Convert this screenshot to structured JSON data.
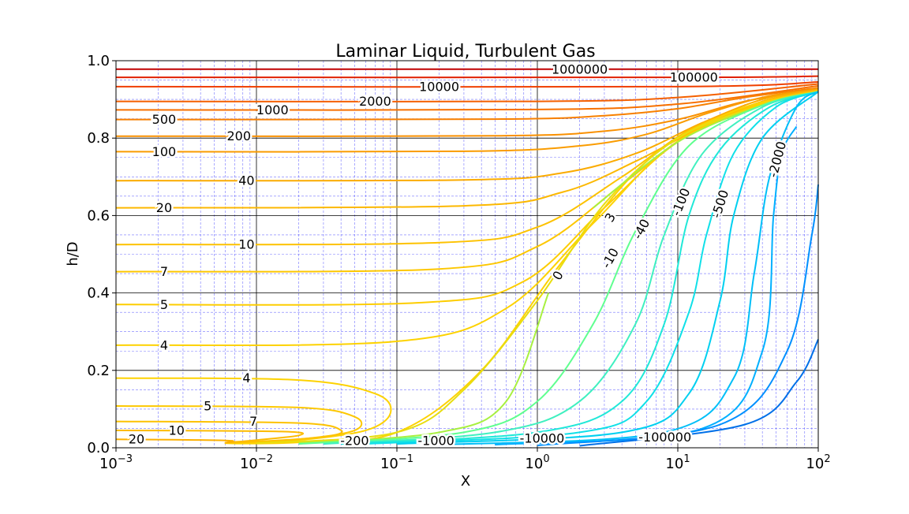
{
  "chart_data": {
    "type": "line",
    "title": "Laminar Liquid, Turbulent Gas",
    "xlabel": "X",
    "ylabel": "h/D",
    "xscale": "log",
    "xlim": [
      0.001,
      100
    ],
    "ylim": [
      0.0,
      1.0
    ],
    "grid": "major and minor",
    "legend": "none",
    "x_ticks": [
      {
        "v": 0.001,
        "base": "10",
        "exp": "−3"
      },
      {
        "v": 0.01,
        "base": "10",
        "exp": "−2"
      },
      {
        "v": 0.1,
        "base": "10",
        "exp": "−1"
      },
      {
        "v": 1,
        "base": "10",
        "exp": "0"
      },
      {
        "v": 10,
        "base": "10",
        "exp": "1"
      },
      {
        "v": 100,
        "base": "10",
        "exp": "2"
      }
    ],
    "y_ticks": [
      {
        "v": 0.0,
        "label": "0.0"
      },
      {
        "v": 0.2,
        "label": "0.2"
      },
      {
        "v": 0.4,
        "label": "0.4"
      },
      {
        "v": 0.6,
        "label": "0.6"
      },
      {
        "v": 0.8,
        "label": "0.8"
      },
      {
        "v": 1.0,
        "label": "1.0"
      }
    ],
    "series": [
      {
        "label": "1000000",
        "color": "#c00000",
        "points": [
          [
            0.001,
            0.978
          ],
          [
            100,
            0.978
          ]
        ]
      },
      {
        "label": "100000",
        "color": "#e02000",
        "points": [
          [
            0.001,
            0.957
          ],
          [
            10,
            0.957
          ],
          [
            100,
            0.96
          ]
        ]
      },
      {
        "label": "10000",
        "color": "#f04000",
        "points": [
          [
            0.001,
            0.933
          ],
          [
            10,
            0.933
          ],
          [
            100,
            0.945
          ]
        ]
      },
      {
        "label": "2000",
        "color": "#f56000",
        "points": [
          [
            0.001,
            0.895
          ],
          [
            1,
            0.895
          ],
          [
            10,
            0.905
          ],
          [
            100,
            0.94
          ]
        ]
      },
      {
        "label": "1000",
        "color": "#f77000",
        "points": [
          [
            0.001,
            0.873
          ],
          [
            1,
            0.874
          ],
          [
            10,
            0.888
          ],
          [
            100,
            0.935
          ]
        ]
      },
      {
        "label": "500",
        "color": "#f88000",
        "points": [
          [
            0.001,
            0.848
          ],
          [
            0.5,
            0.849
          ],
          [
            3,
            0.858
          ],
          [
            10,
            0.876
          ],
          [
            30,
            0.905
          ],
          [
            100,
            0.93
          ]
        ]
      },
      {
        "label": "200",
        "color": "#f99000",
        "points": [
          [
            0.001,
            0.805
          ],
          [
            0.5,
            0.806
          ],
          [
            3,
            0.818
          ],
          [
            10,
            0.848
          ],
          [
            30,
            0.895
          ],
          [
            100,
            0.928
          ]
        ]
      },
      {
        "label": "100",
        "color": "#fa9c00",
        "points": [
          [
            0.001,
            0.765
          ],
          [
            0.3,
            0.766
          ],
          [
            2,
            0.78
          ],
          [
            6,
            0.81
          ],
          [
            15,
            0.86
          ],
          [
            40,
            0.905
          ],
          [
            100,
            0.927
          ]
        ]
      },
      {
        "label": "40",
        "color": "#fbab00",
        "points": [
          [
            0.001,
            0.69
          ],
          [
            0.3,
            0.692
          ],
          [
            1.5,
            0.71
          ],
          [
            5,
            0.76
          ],
          [
            15,
            0.84
          ],
          [
            40,
            0.9
          ],
          [
            100,
            0.925
          ]
        ]
      },
      {
        "label": "20",
        "color": "#fcb800",
        "points": [
          [
            0.001,
            0.62
          ],
          [
            0.3,
            0.625
          ],
          [
            1.5,
            0.66
          ],
          [
            5,
            0.74
          ],
          [
            15,
            0.83
          ],
          [
            40,
            0.895
          ],
          [
            100,
            0.924
          ]
        ]
      },
      {
        "label": "10",
        "color": "#fdc200",
        "points": [
          [
            0.001,
            0.525
          ],
          [
            0.2,
            0.53
          ],
          [
            1,
            0.57
          ],
          [
            4,
            0.7
          ],
          [
            12,
            0.82
          ],
          [
            40,
            0.89
          ],
          [
            100,
            0.923
          ]
        ]
      },
      {
        "label": "7",
        "color": "#fdc700",
        "points": [
          [
            0.001,
            0.455
          ],
          [
            0.2,
            0.462
          ],
          [
            1,
            0.52
          ],
          [
            4,
            0.68
          ],
          [
            12,
            0.81
          ],
          [
            40,
            0.89
          ],
          [
            100,
            0.922
          ]
        ]
      },
      {
        "label": "5",
        "color": "#fdcd00",
        "points": [
          [
            0.001,
            0.37
          ],
          [
            0.15,
            0.375
          ],
          [
            0.8,
            0.43
          ],
          [
            3,
            0.62
          ],
          [
            10,
            0.79
          ],
          [
            40,
            0.89
          ],
          [
            100,
            0.921
          ]
        ]
      },
      {
        "label": "4",
        "color": "#fdd200",
        "points": [
          [
            0.001,
            0.265
          ],
          [
            0.1,
            0.275
          ],
          [
            0.6,
            0.36
          ],
          [
            2.5,
            0.58
          ],
          [
            9,
            0.78
          ],
          [
            40,
            0.888
          ],
          [
            100,
            0.92
          ]
        ]
      },
      {
        "label": "4",
        "color": "#fdd200",
        "points": [
          [
            0.001,
            0.18
          ],
          [
            0.02,
            0.175
          ],
          [
            0.07,
            0.14
          ],
          [
            0.09,
            0.09
          ],
          [
            0.06,
            0.045
          ],
          [
            0.02,
            0.02
          ],
          [
            0.006,
            0.012
          ],
          [
            0.02,
            0.014
          ],
          [
            0.1,
            0.04
          ],
          [
            0.4,
            0.2
          ],
          [
            1.5,
            0.48
          ],
          [
            6,
            0.74
          ],
          [
            25,
            0.87
          ],
          [
            100,
            0.92
          ]
        ]
      },
      {
        "label": "5",
        "color": "#fdc800",
        "points": [
          [
            0.001,
            0.108
          ],
          [
            0.02,
            0.104
          ],
          [
            0.05,
            0.08
          ],
          [
            0.05,
            0.045
          ],
          [
            0.02,
            0.022
          ],
          [
            0.006,
            0.013
          ]
        ]
      },
      {
        "label": "7",
        "color": "#fdc200",
        "points": [
          [
            0.001,
            0.068
          ],
          [
            0.02,
            0.064
          ],
          [
            0.04,
            0.045
          ],
          [
            0.03,
            0.028
          ],
          [
            0.01,
            0.016
          ],
          [
            0.006,
            0.013
          ]
        ]
      },
      {
        "label": "10",
        "color": "#fdbb00",
        "points": [
          [
            0.001,
            0.045
          ],
          [
            0.015,
            0.042
          ],
          [
            0.02,
            0.032
          ],
          [
            0.01,
            0.02
          ],
          [
            0.006,
            0.013
          ]
        ]
      },
      {
        "label": "20",
        "color": "#fcb000",
        "points": [
          [
            0.001,
            0.022
          ],
          [
            0.006,
            0.019
          ],
          [
            0.006,
            0.013
          ]
        ]
      },
      {
        "label": "3",
        "color": "#e8de10",
        "points": [
          [
            0.01,
            0.012
          ],
          [
            0.1,
            0.04
          ],
          [
            0.3,
            0.15
          ],
          [
            1,
            0.38
          ],
          [
            3,
            0.63
          ],
          [
            10,
            0.8
          ],
          [
            40,
            0.885
          ],
          [
            100,
            0.92
          ]
        ]
      },
      {
        "label": "0",
        "color": "#a8f040",
        "points": [
          [
            0.02,
            0.012
          ],
          [
            0.2,
            0.04
          ],
          [
            0.6,
            0.12
          ],
          [
            1.2,
            0.4
          ]
        ]
      },
      {
        "label": "0",
        "color": "#a8f040",
        "points": [
          [
            2.5,
            0.62
          ],
          [
            10,
            0.79
          ],
          [
            40,
            0.885
          ],
          [
            100,
            0.92
          ]
        ]
      },
      {
        "label": "-10",
        "color": "#60ff90",
        "points": [
          [
            0.02,
            0.01
          ],
          [
            0.3,
            0.04
          ],
          [
            1,
            0.12
          ],
          [
            2.5,
            0.32
          ],
          [
            5,
            0.56
          ],
          [
            12,
            0.78
          ],
          [
            40,
            0.885
          ],
          [
            100,
            0.92
          ]
        ]
      },
      {
        "label": "-40",
        "color": "#40f0c0",
        "points": [
          [
            0.03,
            0.01
          ],
          [
            0.5,
            0.04
          ],
          [
            2,
            0.12
          ],
          [
            5,
            0.32
          ],
          [
            8,
            0.55
          ],
          [
            15,
            0.76
          ],
          [
            40,
            0.88
          ],
          [
            100,
            0.92
          ]
        ]
      },
      {
        "label": "-100",
        "color": "#20e8d8",
        "points": [
          [
            0.04,
            0.01
          ],
          [
            1,
            0.04
          ],
          [
            4,
            0.12
          ],
          [
            8,
            0.32
          ],
          [
            12,
            0.6
          ],
          [
            20,
            0.77
          ],
          [
            45,
            0.88
          ],
          [
            100,
            0.92
          ]
        ]
      },
      {
        "label": "-200",
        "color": "#10e0e8",
        "points": [
          [
            0.06,
            0.01
          ],
          [
            2,
            0.04
          ],
          [
            6,
            0.12
          ],
          [
            12,
            0.35
          ],
          [
            16,
            0.55
          ],
          [
            25,
            0.76
          ],
          [
            50,
            0.88
          ],
          [
            100,
            0.92
          ]
        ]
      },
      {
        "label": "-500",
        "color": "#00d0f0",
        "points": [
          [
            0.1,
            0.01
          ],
          [
            4,
            0.04
          ],
          [
            12,
            0.14
          ],
          [
            20,
            0.38
          ],
          [
            25,
            0.6
          ],
          [
            40,
            0.8
          ],
          [
            100,
            0.92
          ]
        ]
      },
      {
        "label": "-1000",
        "color": "#00bff8",
        "points": [
          [
            0.2,
            0.008
          ],
          [
            8,
            0.04
          ],
          [
            25,
            0.18
          ],
          [
            35,
            0.45
          ],
          [
            45,
            0.7
          ],
          [
            70,
            0.88
          ],
          [
            100,
            0.92
          ]
        ]
      },
      {
        "label": "-2000",
        "color": "#00b0ff",
        "points": [
          [
            0.5,
            0.008
          ],
          [
            15,
            0.05
          ],
          [
            40,
            0.25
          ],
          [
            48,
            0.6
          ],
          [
            55,
            0.76
          ],
          [
            70,
            0.83
          ]
        ]
      },
      {
        "label": "-10000",
        "color": "#0090ff",
        "points": [
          [
            1,
            0.006
          ],
          [
            20,
            0.06
          ],
          [
            60,
            0.25
          ],
          [
            90,
            0.55
          ],
          [
            100,
            0.68
          ]
        ]
      },
      {
        "label": "-100000",
        "color": "#0070e8",
        "points": [
          [
            2,
            0.005
          ],
          [
            30,
            0.06
          ],
          [
            70,
            0.17
          ],
          [
            100,
            0.28
          ]
        ]
      }
    ],
    "inline_labels": [
      {
        "text": "1000000",
        "x": 2.0,
        "y": 0.978,
        "rot": 0
      },
      {
        "text": "100000",
        "x": 13,
        "y": 0.957,
        "rot": 0
      },
      {
        "text": "10000",
        "x": 0.2,
        "y": 0.933,
        "rot": 0
      },
      {
        "text": "2000",
        "x": 0.07,
        "y": 0.895,
        "rot": 0
      },
      {
        "text": "1000",
        "x": 0.013,
        "y": 0.873,
        "rot": 0
      },
      {
        "text": "500",
        "x": 0.0022,
        "y": 0.848,
        "rot": 0
      },
      {
        "text": "200",
        "x": 0.0075,
        "y": 0.805,
        "rot": 0
      },
      {
        "text": "100",
        "x": 0.0022,
        "y": 0.765,
        "rot": 0
      },
      {
        "text": "40",
        "x": 0.0085,
        "y": 0.69,
        "rot": 0
      },
      {
        "text": "20",
        "x": 0.0022,
        "y": 0.62,
        "rot": 0
      },
      {
        "text": "10",
        "x": 0.0085,
        "y": 0.525,
        "rot": 0
      },
      {
        "text": "7",
        "x": 0.0022,
        "y": 0.455,
        "rot": 0
      },
      {
        "text": "5",
        "x": 0.0022,
        "y": 0.37,
        "rot": 0
      },
      {
        "text": "4",
        "x": 0.0022,
        "y": 0.265,
        "rot": 0
      },
      {
        "text": "4",
        "x": 0.0085,
        "y": 0.18,
        "rot": 0
      },
      {
        "text": "5",
        "x": 0.0045,
        "y": 0.108,
        "rot": 0
      },
      {
        "text": "7",
        "x": 0.0095,
        "y": 0.068,
        "rot": 0
      },
      {
        "text": "10",
        "x": 0.0027,
        "y": 0.045,
        "rot": 0
      },
      {
        "text": "20",
        "x": 0.0014,
        "y": 0.022,
        "rot": 0
      },
      {
        "text": "3",
        "x": 3.3,
        "y": 0.595,
        "rot": -60
      },
      {
        "text": "0",
        "x": 1.4,
        "y": 0.445,
        "rot": -60
      },
      {
        "text": "-10",
        "x": 3.3,
        "y": 0.49,
        "rot": -60
      },
      {
        "text": "-40",
        "x": 5.5,
        "y": 0.565,
        "rot": -62
      },
      {
        "text": "-100",
        "x": 10.5,
        "y": 0.635,
        "rot": -68
      },
      {
        "text": "-500",
        "x": 20,
        "y": 0.63,
        "rot": -72
      },
      {
        "text": "-2000",
        "x": 51,
        "y": 0.745,
        "rot": -75
      },
      {
        "text": "-200",
        "x": 0.05,
        "y": 0.018,
        "rot": 0
      },
      {
        "text": "-1000",
        "x": 0.19,
        "y": 0.018,
        "rot": 0
      },
      {
        "text": "-10000",
        "x": 1.08,
        "y": 0.024,
        "rot": 0
      },
      {
        "text": "-100000",
        "x": 8.1,
        "y": 0.027,
        "rot": 0
      }
    ]
  }
}
